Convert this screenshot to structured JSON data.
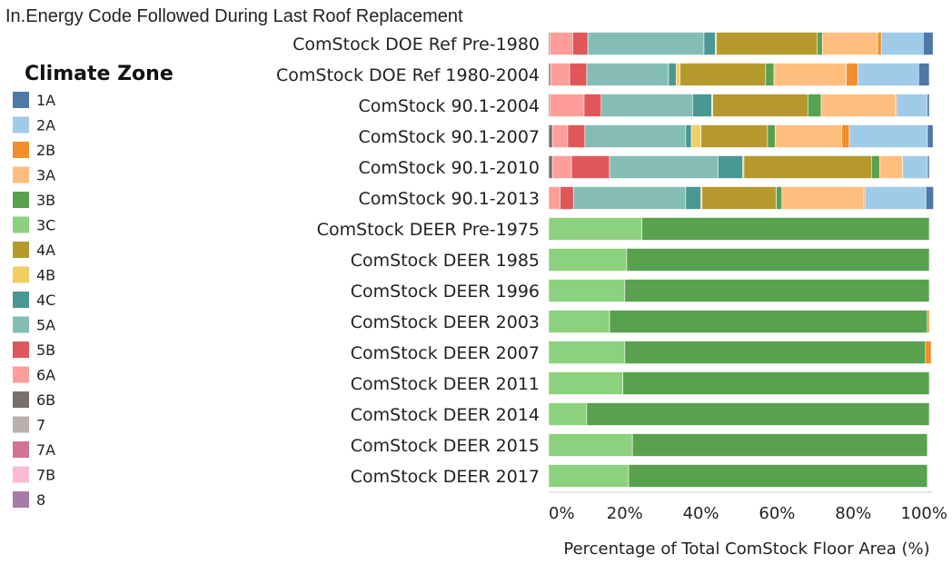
{
  "chart_data": {
    "type": "bar",
    "orientation": "horizontal",
    "stacked": true,
    "title": "In.Energy Code Followed During Last Roof Replacement",
    "xlabel": "Percentage of Total ComStock Floor Area (%)",
    "ylabel": "",
    "xlim": [
      0,
      100
    ],
    "xticks": [
      "0%",
      "20%",
      "40%",
      "60%",
      "80%",
      "100%"
    ],
    "grid": false,
    "legend": {
      "title": "Climate Zone",
      "placement": "left"
    },
    "categories": [
      "ComStock DOE Ref Pre-1980",
      "ComStock DOE Ref 1980-2004",
      "ComStock 90.1-2004",
      "ComStock 90.1-2007",
      "ComStock 90.1-2010",
      "ComStock 90.1-2013",
      "ComStock DEER Pre-1975",
      "ComStock DEER 1985",
      "ComStock DEER 1996",
      "ComStock DEER 2003",
      "ComStock DEER 2007",
      "ComStock DEER 2011",
      "ComStock DEER 2014",
      "ComStock DEER 2015",
      "ComStock DEER 2017"
    ],
    "series": [
      {
        "name": "8",
        "color": "#a87aa6",
        "values": [
          0,
          0,
          0,
          0,
          0,
          0,
          0,
          0,
          0,
          0,
          0,
          0,
          0,
          0,
          0
        ]
      },
      {
        "name": "7B",
        "color": "#fbbcd3",
        "values": [
          0,
          0,
          0,
          0,
          0,
          0,
          0,
          0,
          0,
          0,
          0,
          0,
          0,
          0,
          0
        ]
      },
      {
        "name": "7A",
        "color": "#d37295",
        "values": [
          0,
          0,
          0,
          0,
          0,
          0,
          0,
          0,
          0,
          0,
          0,
          0,
          0,
          0,
          0
        ]
      },
      {
        "name": "7",
        "color": "#bab0ac",
        "values": [
          0,
          0,
          0,
          0,
          0,
          0,
          0,
          0,
          0,
          0,
          0,
          0,
          0,
          0,
          0
        ]
      },
      {
        "name": "6B",
        "color": "#79706e",
        "values": [
          0.3,
          0.5,
          0.3,
          1,
          1,
          0,
          0,
          0,
          0,
          0,
          0,
          0,
          0,
          0,
          0
        ]
      },
      {
        "name": "6A",
        "color": "#ff9d9a",
        "values": [
          6,
          5,
          9,
          4,
          5,
          3,
          0,
          0,
          0,
          0,
          0,
          0,
          0,
          0,
          0
        ]
      },
      {
        "name": "5B",
        "color": "#e15759",
        "values": [
          4,
          4.5,
          4.5,
          4.5,
          10,
          3.5,
          0,
          0,
          0,
          0,
          0,
          0,
          0,
          0,
          0
        ]
      },
      {
        "name": "5A",
        "color": "#86bcb6",
        "values": [
          30.5,
          21.5,
          24,
          26.5,
          28.5,
          29.5,
          0,
          0,
          0,
          0,
          0,
          0,
          0,
          0,
          0
        ]
      },
      {
        "name": "4C",
        "color": "#499894",
        "values": [
          3,
          2,
          5,
          1.5,
          6.5,
          4,
          0,
          0,
          0,
          0,
          0,
          0,
          0,
          0,
          0
        ]
      },
      {
        "name": "4B",
        "color": "#f1ce63",
        "values": [
          0.3,
          1,
          0.3,
          2.5,
          0.3,
          0.3,
          0,
          0,
          0,
          0,
          0,
          0,
          0,
          0,
          0
        ]
      },
      {
        "name": "4A",
        "color": "#b6992d",
        "values": [
          26.5,
          22.5,
          25,
          17.5,
          33.5,
          19.5,
          0,
          0,
          0,
          0,
          0,
          0,
          0,
          0,
          0
        ]
      },
      {
        "name": "3C",
        "color": "#8cd17d",
        "values": [
          0,
          0,
          0,
          0,
          0,
          0,
          24.5,
          20.5,
          20,
          16,
          20,
          19.5,
          10,
          22,
          21
        ]
      },
      {
        "name": "3B",
        "color": "#59a14f",
        "values": [
          1.3,
          2.2,
          3.5,
          2,
          2.2,
          1.5,
          75.5,
          79.5,
          80,
          83.5,
          79,
          80.5,
          90,
          77.5,
          78.5
        ]
      },
      {
        "name": "3A",
        "color": "#ffbe7d",
        "values": [
          14.5,
          19,
          19.5,
          17.5,
          6,
          21.5,
          0,
          0,
          0,
          0,
          0,
          0,
          0,
          0,
          0
        ]
      },
      {
        "name": "2B",
        "color": "#f28e2b",
        "values": [
          1,
          3,
          0.3,
          2,
          0,
          0.3,
          0,
          0,
          0,
          0.5,
          1.5,
          0,
          0,
          0,
          0
        ]
      },
      {
        "name": "2A",
        "color": "#a0cbe8",
        "values": [
          11,
          16,
          8,
          20.5,
          6.5,
          16,
          0,
          0,
          0,
          0,
          0,
          0,
          0,
          0,
          0
        ]
      },
      {
        "name": "1A",
        "color": "#4e79a7",
        "values": [
          2.6,
          2.8,
          0.6,
          1.5,
          0.5,
          2,
          0,
          0,
          0,
          0,
          0,
          0,
          0,
          0,
          0
        ]
      }
    ],
    "legend_order": [
      "1A",
      "2A",
      "2B",
      "3A",
      "3B",
      "3C",
      "4A",
      "4B",
      "4C",
      "5A",
      "5B",
      "6A",
      "6B",
      "7",
      "7A",
      "7B",
      "8"
    ]
  }
}
